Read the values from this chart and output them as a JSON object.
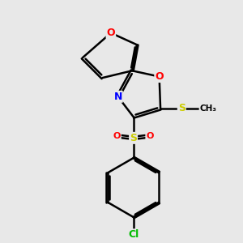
{
  "bg_color": "#e8e8e8",
  "bond_color": "#000000",
  "bond_width": 1.8,
  "dbo": 0.055,
  "atom_colors": {
    "O": "#ff0000",
    "N": "#0000ff",
    "S": "#cccc00",
    "Cl": "#00bb00",
    "C": "#000000"
  },
  "font_size": 9,
  "fig_size": [
    3.0,
    3.0
  ],
  "dpi": 100
}
